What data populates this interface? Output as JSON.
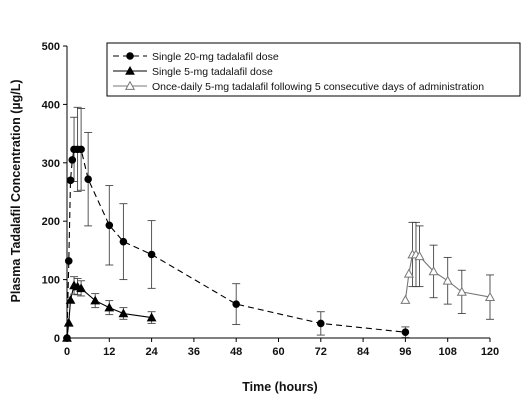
{
  "chart_data": {
    "type": "line",
    "title": "",
    "xlabel": "Time (hours)",
    "ylabel": "Plasma Tadalafil Concentration (µg/L)",
    "xlim": [
      0,
      120
    ],
    "ylim": [
      0,
      500
    ],
    "x_ticks": [
      "0",
      "12",
      "24",
      "36",
      "48",
      "60",
      "72",
      "84",
      "96",
      "108",
      "120"
    ],
    "y_ticks": [
      "0",
      "100",
      "200",
      "300",
      "400",
      "500"
    ],
    "grid": false,
    "legend_position": "top-right",
    "series": [
      {
        "name": "Single 20-mg tadalafil dose",
        "marker": "circle-filled",
        "line": "dashed",
        "color": "#000000",
        "points": [
          {
            "x": 0,
            "y": 0
          },
          {
            "x": 0.5,
            "y": 132
          },
          {
            "x": 1,
            "y": 270
          },
          {
            "x": 1.5,
            "y": 305
          },
          {
            "x": 2,
            "y": 323,
            "err": 55
          },
          {
            "x": 3,
            "y": 323,
            "err": 72
          },
          {
            "x": 4,
            "y": 323,
            "err": 70
          },
          {
            "x": 6,
            "y": 272,
            "err": 80
          },
          {
            "x": 12,
            "y": 193,
            "err": 68
          },
          {
            "x": 16,
            "y": 165,
            "err": 65
          },
          {
            "x": 24,
            "y": 143,
            "err": 58
          },
          {
            "x": 48,
            "y": 58,
            "err": 35
          },
          {
            "x": 72,
            "y": 25,
            "err": 20
          },
          {
            "x": 96,
            "y": 10,
            "err": 9
          }
        ]
      },
      {
        "name": "Single 5-mg tadalafil dose",
        "marker": "triangle-filled",
        "line": "solid",
        "color": "#000000",
        "points": [
          {
            "x": 0,
            "y": 0
          },
          {
            "x": 0.5,
            "y": 26
          },
          {
            "x": 1,
            "y": 65
          },
          {
            "x": 2,
            "y": 90,
            "err": 15
          },
          {
            "x": 3,
            "y": 88,
            "err": 14
          },
          {
            "x": 4,
            "y": 85,
            "err": 13
          },
          {
            "x": 8,
            "y": 64,
            "err": 12
          },
          {
            "x": 12,
            "y": 52,
            "err": 12
          },
          {
            "x": 16,
            "y": 42,
            "err": 10
          },
          {
            "x": 24,
            "y": 35,
            "err": 10
          }
        ]
      },
      {
        "name": "Once-daily 5-mg tadalafil following 5 consecutive days of administration",
        "marker": "triangle-open",
        "line": "solid",
        "color": "#777777",
        "points": [
          {
            "x": 96,
            "y": 65
          },
          {
            "x": 97,
            "y": 110
          },
          {
            "x": 98,
            "y": 143,
            "err": 55
          },
          {
            "x": 99,
            "y": 143,
            "err": 55
          },
          {
            "x": 100,
            "y": 140,
            "err": 52
          },
          {
            "x": 104,
            "y": 114,
            "err": 45
          },
          {
            "x": 108,
            "y": 98,
            "err": 40
          },
          {
            "x": 112,
            "y": 79,
            "err": 37
          },
          {
            "x": 120,
            "y": 70,
            "err": 38
          }
        ]
      }
    ]
  }
}
